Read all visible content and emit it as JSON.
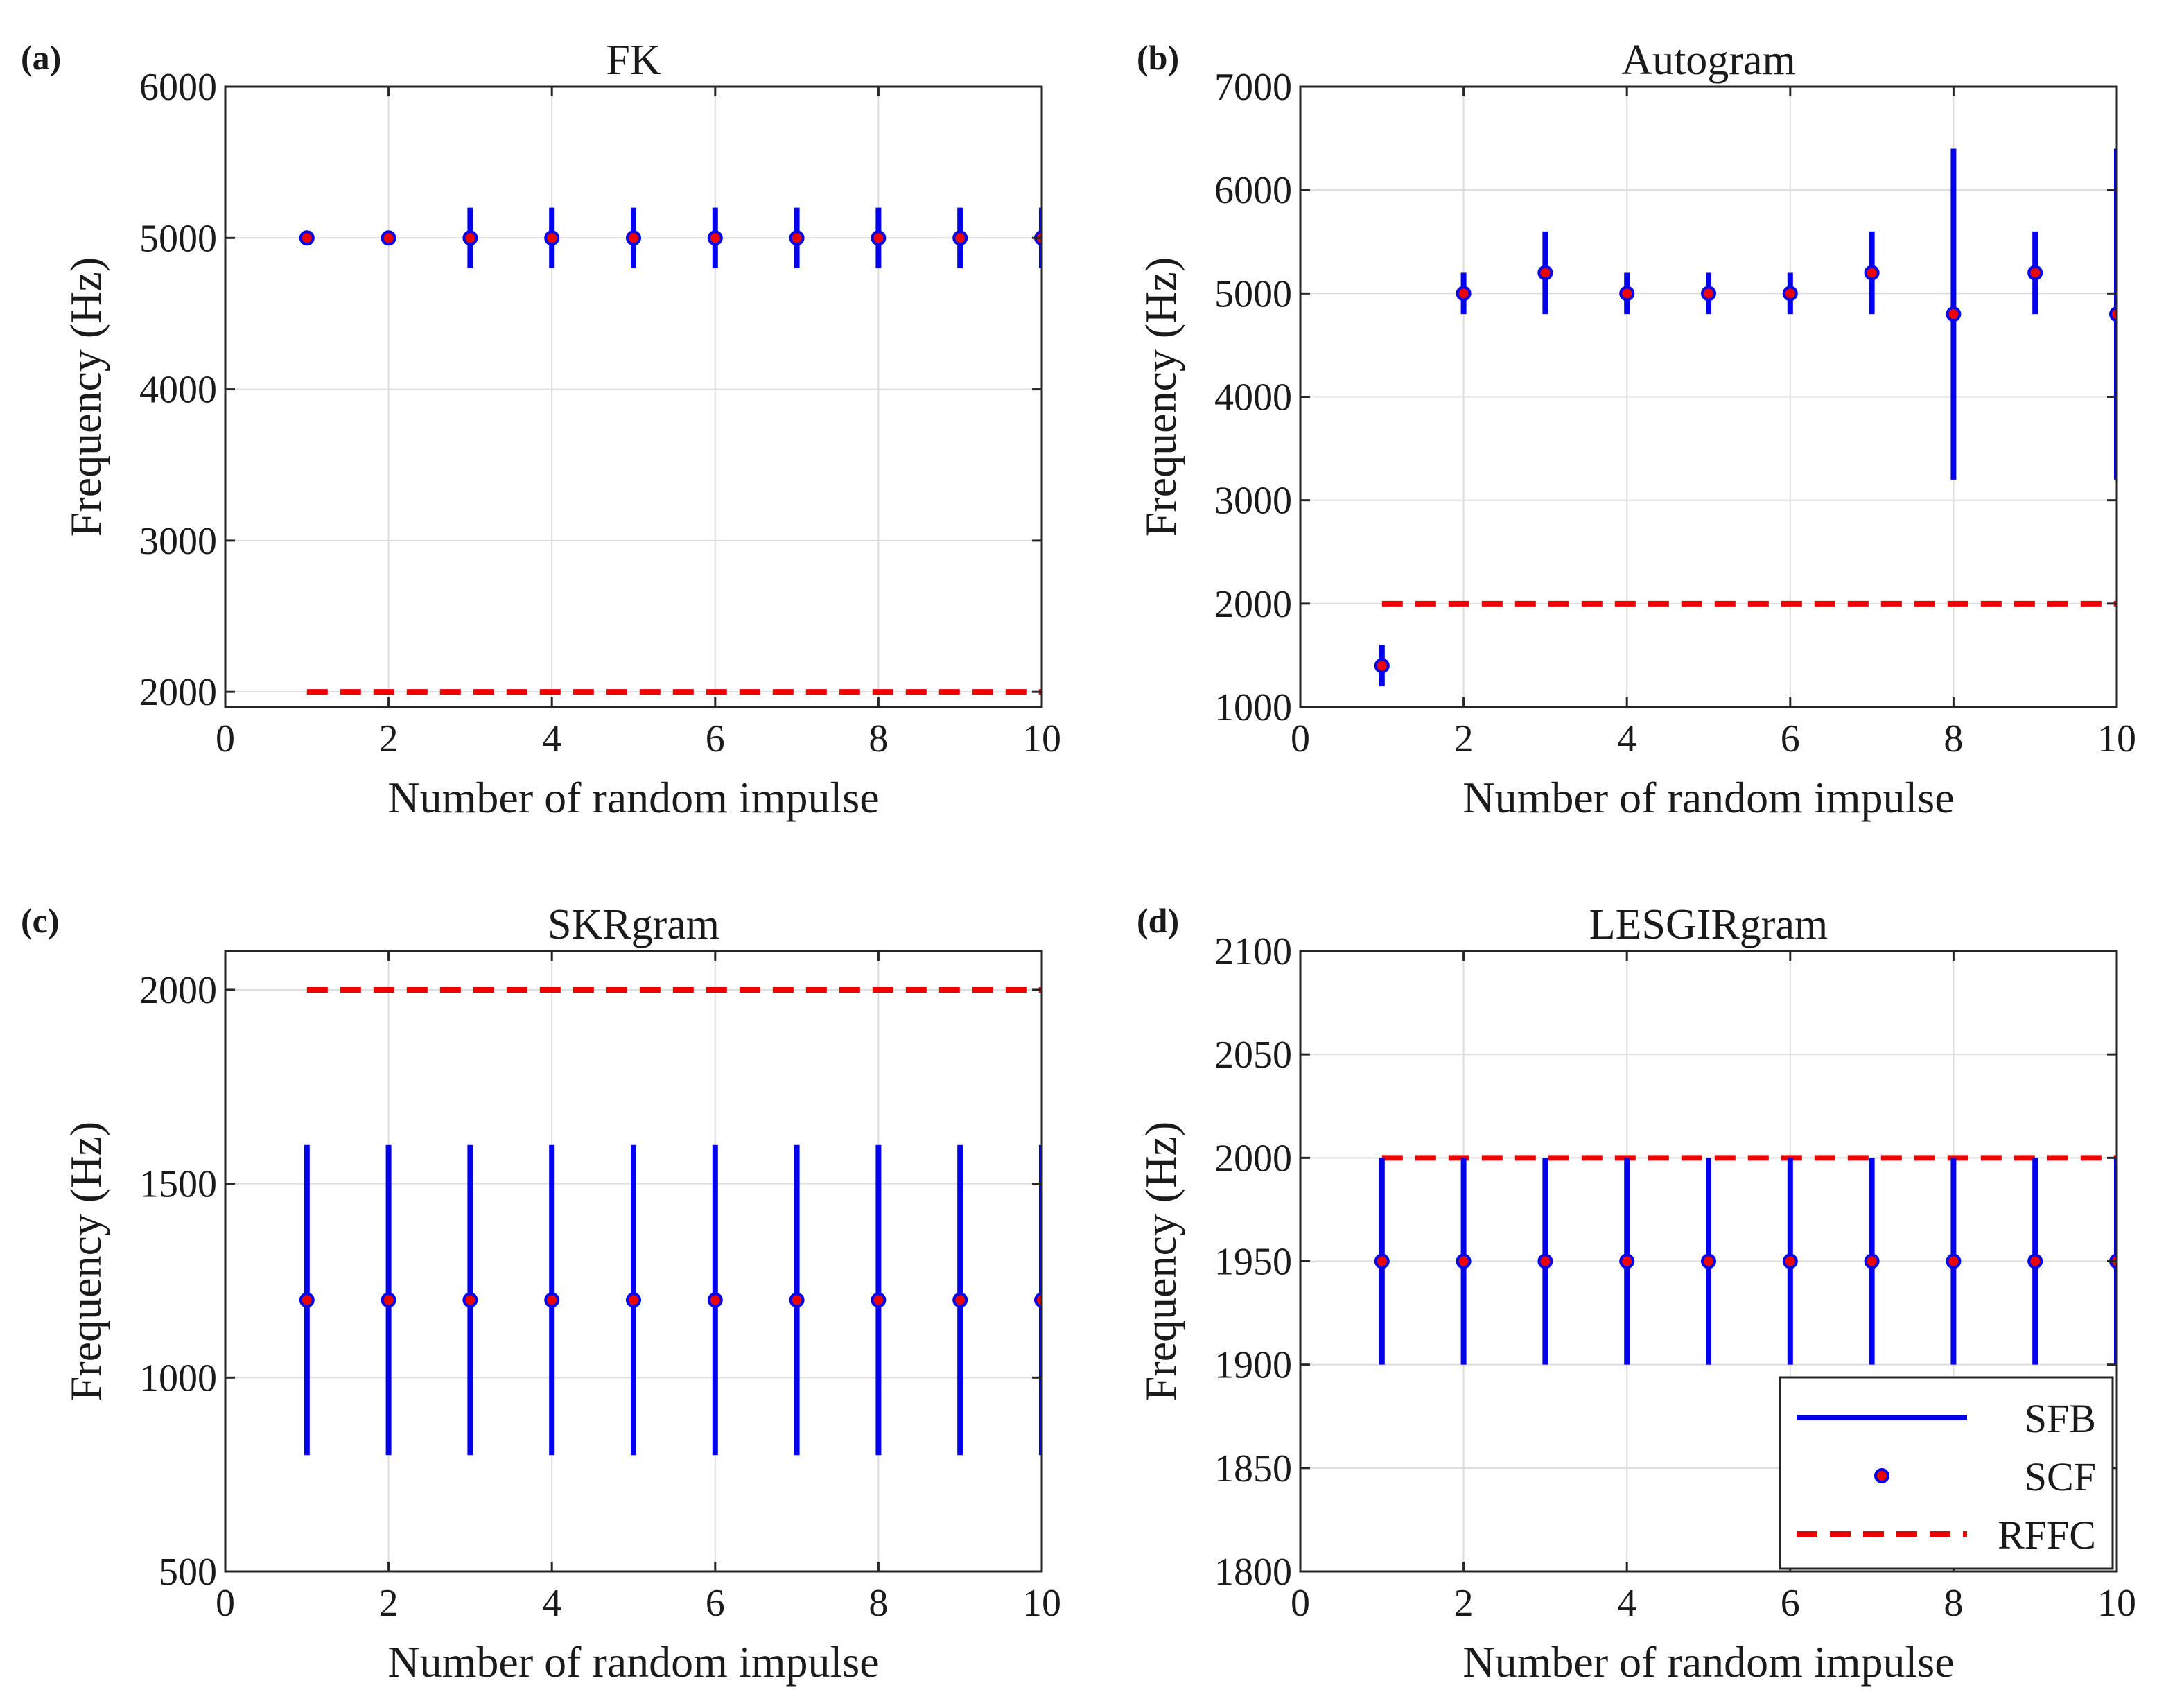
{
  "chart_data": [
    {
      "type": "errorbar",
      "panel_label": "(a)",
      "title": "FK",
      "xlabel": "Number of random impulse",
      "ylabel": "Frequency (Hz)",
      "xlim": [
        0,
        10
      ],
      "ylim": [
        1900,
        6000
      ],
      "xticks": [
        "0",
        "2",
        "4",
        "6",
        "8",
        "10"
      ],
      "yticks": [
        "2000",
        "3000",
        "4000",
        "5000",
        "6000"
      ],
      "grid": true,
      "x": [
        1,
        2,
        3,
        4,
        5,
        6,
        7,
        8,
        9,
        10
      ],
      "series": [
        {
          "name": "SFB",
          "kind": "vertical-band",
          "color": "#0000ee",
          "low": [
            4960,
            4960,
            4800,
            4800,
            4800,
            4800,
            4800,
            4800,
            4800,
            4800
          ],
          "high": [
            5040,
            5040,
            5200,
            5200,
            5200,
            5200,
            5200,
            5200,
            5200,
            5200
          ]
        },
        {
          "name": "SCF",
          "kind": "marker",
          "color": "#ee0000",
          "edge_color": "#0000ee",
          "values": [
            5000,
            5000,
            5000,
            5000,
            5000,
            5000,
            5000,
            5000,
            5000,
            5000
          ]
        },
        {
          "name": "RFFC",
          "kind": "dashed-line",
          "color": "#ee0000",
          "values": [
            2000,
            2000,
            2000,
            2000,
            2000,
            2000,
            2000,
            2000,
            2000,
            2000
          ]
        }
      ],
      "legend": null
    },
    {
      "type": "errorbar",
      "panel_label": "(b)",
      "title": "Autogram",
      "xlabel": "Number of random impulse",
      "ylabel": "Frequency (Hz)",
      "xlim": [
        0,
        10
      ],
      "ylim": [
        1000,
        7000
      ],
      "xticks": [
        "0",
        "2",
        "4",
        "6",
        "8",
        "10"
      ],
      "yticks": [
        "1000",
        "2000",
        "3000",
        "4000",
        "5000",
        "6000",
        "7000"
      ],
      "grid": true,
      "x": [
        1,
        2,
        3,
        4,
        5,
        6,
        7,
        8,
        9,
        10
      ],
      "series": [
        {
          "name": "SFB",
          "kind": "vertical-band",
          "color": "#0000ee",
          "low": [
            1200,
            4800,
            4800,
            4800,
            4800,
            4800,
            4800,
            3200,
            4800,
            3200
          ],
          "high": [
            1600,
            5200,
            5600,
            5200,
            5200,
            5200,
            5600,
            6400,
            5600,
            6400
          ]
        },
        {
          "name": "SCF",
          "kind": "marker",
          "color": "#ee0000",
          "edge_color": "#0000ee",
          "values": [
            1400,
            5000,
            5200,
            5000,
            5000,
            5000,
            5200,
            4800,
            5200,
            4800
          ]
        },
        {
          "name": "RFFC",
          "kind": "dashed-line",
          "color": "#ee0000",
          "values": [
            2000,
            2000,
            2000,
            2000,
            2000,
            2000,
            2000,
            2000,
            2000,
            2000
          ]
        }
      ],
      "legend": null
    },
    {
      "type": "errorbar",
      "panel_label": "(c)",
      "title": "SKRgram",
      "xlabel": "Number of random impulse",
      "ylabel": "Frequency (Hz)",
      "xlim": [
        0,
        10
      ],
      "ylim": [
        500,
        2100
      ],
      "xticks": [
        "0",
        "2",
        "4",
        "6",
        "8",
        "10"
      ],
      "yticks": [
        "500",
        "1000",
        "1500",
        "2000"
      ],
      "grid": true,
      "x": [
        1,
        2,
        3,
        4,
        5,
        6,
        7,
        8,
        9,
        10
      ],
      "series": [
        {
          "name": "SFB",
          "kind": "vertical-band",
          "color": "#0000ee",
          "low": [
            800,
            800,
            800,
            800,
            800,
            800,
            800,
            800,
            800,
            800
          ],
          "high": [
            1600,
            1600,
            1600,
            1600,
            1600,
            1600,
            1600,
            1600,
            1600,
            1600
          ]
        },
        {
          "name": "SCF",
          "kind": "marker",
          "color": "#ee0000",
          "edge_color": "#0000ee",
          "values": [
            1200,
            1200,
            1200,
            1200,
            1200,
            1200,
            1200,
            1200,
            1200,
            1200
          ]
        },
        {
          "name": "RFFC",
          "kind": "dashed-line",
          "color": "#ee0000",
          "values": [
            2000,
            2000,
            2000,
            2000,
            2000,
            2000,
            2000,
            2000,
            2000,
            2000
          ]
        }
      ],
      "legend": null
    },
    {
      "type": "errorbar",
      "panel_label": "(d)",
      "title": "LESGIRgram",
      "xlabel": "Number of random impulse",
      "ylabel": "Frequency (Hz)",
      "xlim": [
        0,
        10
      ],
      "ylim": [
        1800,
        2100
      ],
      "xticks": [
        "0",
        "2",
        "4",
        "6",
        "8",
        "10"
      ],
      "yticks": [
        "1800",
        "1850",
        "1900",
        "1950",
        "2000",
        "2050",
        "2100"
      ],
      "grid": true,
      "x": [
        1,
        2,
        3,
        4,
        5,
        6,
        7,
        8,
        9,
        10
      ],
      "series": [
        {
          "name": "SFB",
          "kind": "vertical-band",
          "color": "#0000ee",
          "low": [
            1900,
            1900,
            1900,
            1900,
            1900,
            1900,
            1900,
            1900,
            1900,
            1900
          ],
          "high": [
            2000,
            2000,
            2000,
            2000,
            2000,
            2000,
            2000,
            2000,
            2000,
            2000
          ]
        },
        {
          "name": "SCF",
          "kind": "marker",
          "color": "#ee0000",
          "edge_color": "#0000ee",
          "values": [
            1950,
            1950,
            1950,
            1950,
            1950,
            1950,
            1950,
            1950,
            1950,
            1950
          ]
        },
        {
          "name": "RFFC",
          "kind": "dashed-line",
          "color": "#ee0000",
          "values": [
            2000,
            2000,
            2000,
            2000,
            2000,
            2000,
            2000,
            2000,
            2000,
            2000
          ]
        }
      ],
      "legend": {
        "placement": "bottom-right",
        "entries": [
          "SFB",
          "SCF",
          "RFFC"
        ]
      }
    }
  ]
}
